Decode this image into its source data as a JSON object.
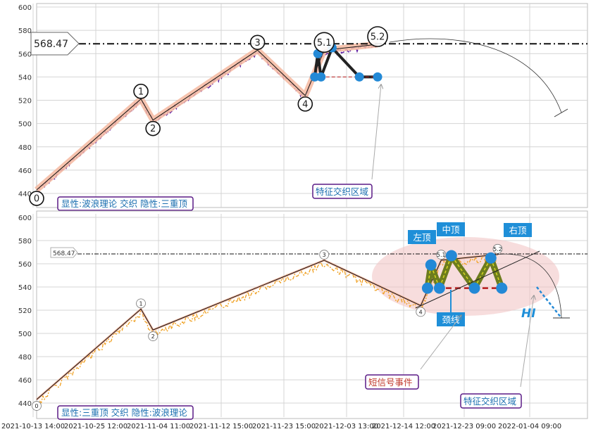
{
  "chart_data": [
    {
      "type": "line",
      "panel": "top",
      "ylim": [
        430,
        600
      ],
      "y_ticks": [
        440,
        460,
        480,
        500,
        520,
        540,
        560,
        580,
        600
      ],
      "grid": true,
      "price_line": {
        "value": 568.47,
        "label": "568.47"
      },
      "wave_points": [
        {
          "label": "0",
          "date": "2021-10-14 06:00",
          "y": 443
        },
        {
          "label": "1",
          "date": "2021-11-01 16:00",
          "y": 521
        },
        {
          "label": "2",
          "date": "2021-11-03 14:00",
          "y": 503
        },
        {
          "label": "3",
          "date": "2021-11-19 00:00",
          "y": 563
        },
        {
          "label": "4",
          "date": "2021-11-27 00:00",
          "y": 524
        },
        {
          "label": "5.1",
          "date": "2021-11-30 00:00",
          "y": 563
        },
        {
          "label": "5.2",
          "date": "2021-12-09 12:00",
          "y": 568
        }
      ],
      "pattern_markers": [
        {
          "date": "2021-11-28 12:00",
          "y": 540
        },
        {
          "date": "2021-11-29 00:00",
          "y": 560
        },
        {
          "date": "2021-11-29 12:00",
          "y": 540
        },
        {
          "date": "2021-12-01 06:00",
          "y": 565
        },
        {
          "date": "2021-12-06 00:00",
          "y": 540
        },
        {
          "date": "2021-12-09 12:00",
          "y": 540
        }
      ],
      "legend_text": "显性:波浪理论 交织 隐性:三重顶",
      "callout_text": "特征交织区域"
    },
    {
      "type": "line",
      "panel": "bottom",
      "ylim": [
        430,
        600
      ],
      "y_ticks": [
        440,
        460,
        480,
        500,
        520,
        540,
        560,
        580,
        600
      ],
      "grid": true,
      "price_line": {
        "value": 568.47,
        "label": "568.47"
      },
      "wave_points": [
        {
          "label": "0",
          "date": "2021-10-14 06:00",
          "y": 443
        },
        {
          "label": "1",
          "date": "2021-11-01 16:00",
          "y": 521
        },
        {
          "label": "2",
          "date": "2021-11-03 14:00",
          "y": 503
        },
        {
          "label": "3",
          "date": "2021-11-30 00:00",
          "y": 563
        },
        {
          "label": "4",
          "date": "2021-12-17 00:00",
          "y": 524
        },
        {
          "label": "5.1",
          "date": "2021-12-20 00:00",
          "y": 563
        },
        {
          "label": "5.2",
          "date": "2021-12-29 12:00",
          "y": 568
        }
      ],
      "pattern_markers": [
        {
          "date": "2021-12-18 00:00",
          "y": 539
        },
        {
          "date": "2021-12-18 12:00",
          "y": 559
        },
        {
          "date": "2021-12-19 18:00",
          "y": 539
        },
        {
          "date": "2021-12-21 12:00",
          "y": 567
        },
        {
          "date": "2021-12-25 06:00",
          "y": 539
        },
        {
          "date": "2021-12-28 06:00",
          "y": 565
        },
        {
          "date": "2021-12-30 06:00",
          "y": 539
        }
      ],
      "pattern_labels": {
        "left": "左顶",
        "middle": "中顶",
        "right": "右顶",
        "neckline": "颈线",
        "hi": "HI"
      },
      "legend_text": "显性:三重顶 交织 隐性:波浪理论",
      "callout_text": "特征交织区域",
      "event_text": "短信号事件"
    }
  ],
  "x_axis_labels": [
    "2021-10-13 14:00",
    "2021-10-25 12:00",
    "2021-11-04 11:00",
    "2021-11-12 15:00",
    "2021-11-23 15:00",
    "2021-12-03 13:00",
    "2021-12-14 12:00",
    "2021-12-23 09:00",
    "2022-01-04 09:00"
  ],
  "colors": {
    "top_price_series": "#5b1aa0",
    "bottom_price_series": "#f0a020",
    "wave_band": "#f4b8a0",
    "marker": "#2389d6",
    "pattern_band": "#6d7c1e",
    "label_box": "#1f8fd8",
    "legend_border": "#5a1a86",
    "legend_text": "#1b6fb0",
    "event_text": "#c0392b",
    "neckline": "#b71c1c",
    "zone_fill": "#f2c6c6"
  }
}
